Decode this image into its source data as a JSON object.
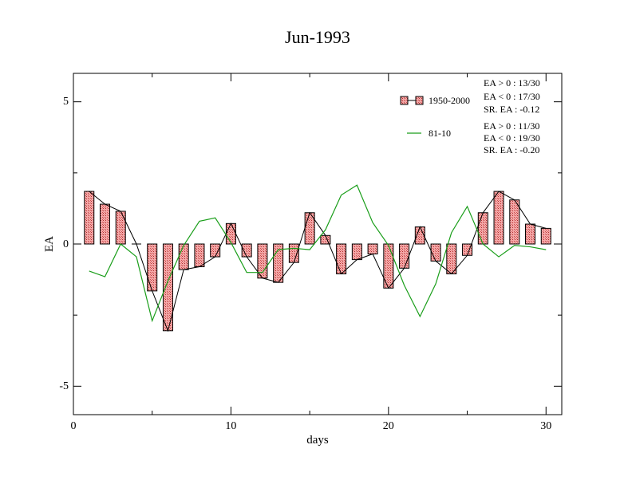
{
  "chart_data": {
    "type": "bar",
    "title": "Jun-1993",
    "xlabel": "days",
    "ylabel": "EA",
    "xlim": [
      0,
      31
    ],
    "ylim": [
      -6,
      6
    ],
    "xticks": [
      "0",
      "10",
      "20",
      "30"
    ],
    "yticks": [
      "-5",
      "0",
      "5"
    ],
    "grid": false,
    "legend_position": "top-right",
    "x": [
      1,
      2,
      3,
      4,
      5,
      6,
      7,
      8,
      9,
      10,
      11,
      12,
      13,
      14,
      15,
      16,
      17,
      18,
      19,
      20,
      21,
      22,
      23,
      24,
      25,
      26,
      27,
      28,
      29,
      30
    ],
    "series": [
      {
        "name": "1950-2000",
        "kind": "bar+line",
        "color": "#e06a6a",
        "values": [
          1.85,
          1.4,
          1.15,
          0.0,
          -1.65,
          -3.05,
          -0.9,
          -0.8,
          -0.45,
          0.72,
          -0.45,
          -1.2,
          -1.35,
          -0.65,
          1.1,
          0.3,
          -1.05,
          -0.55,
          -0.35,
          -1.55,
          -0.85,
          0.6,
          -0.6,
          -1.05,
          -0.4,
          1.1,
          1.85,
          1.55,
          0.7,
          0.55
        ]
      },
      {
        "name": "81-10",
        "kind": "line",
        "color": "#1a9e1a",
        "values": [
          -0.95,
          -1.15,
          0.0,
          -0.45,
          -2.7,
          -1.3,
          -0.05,
          0.8,
          0.92,
          0.05,
          -1.0,
          -1.0,
          -0.2,
          -0.15,
          -0.2,
          0.5,
          1.72,
          2.07,
          0.75,
          -0.05,
          -1.45,
          -2.55,
          -1.4,
          0.4,
          1.32,
          0.0,
          -0.45,
          -0.05,
          -0.1,
          -0.2
        ]
      }
    ],
    "stats": {
      "group1": [
        "EA > 0 : 13/30",
        "EA < 0 : 17/30",
        "SR. EA : -0.12"
      ],
      "group2": [
        "EA > 0 : 11/30",
        "EA < 0 : 19/30",
        "SR. EA : -0.20"
      ]
    }
  }
}
